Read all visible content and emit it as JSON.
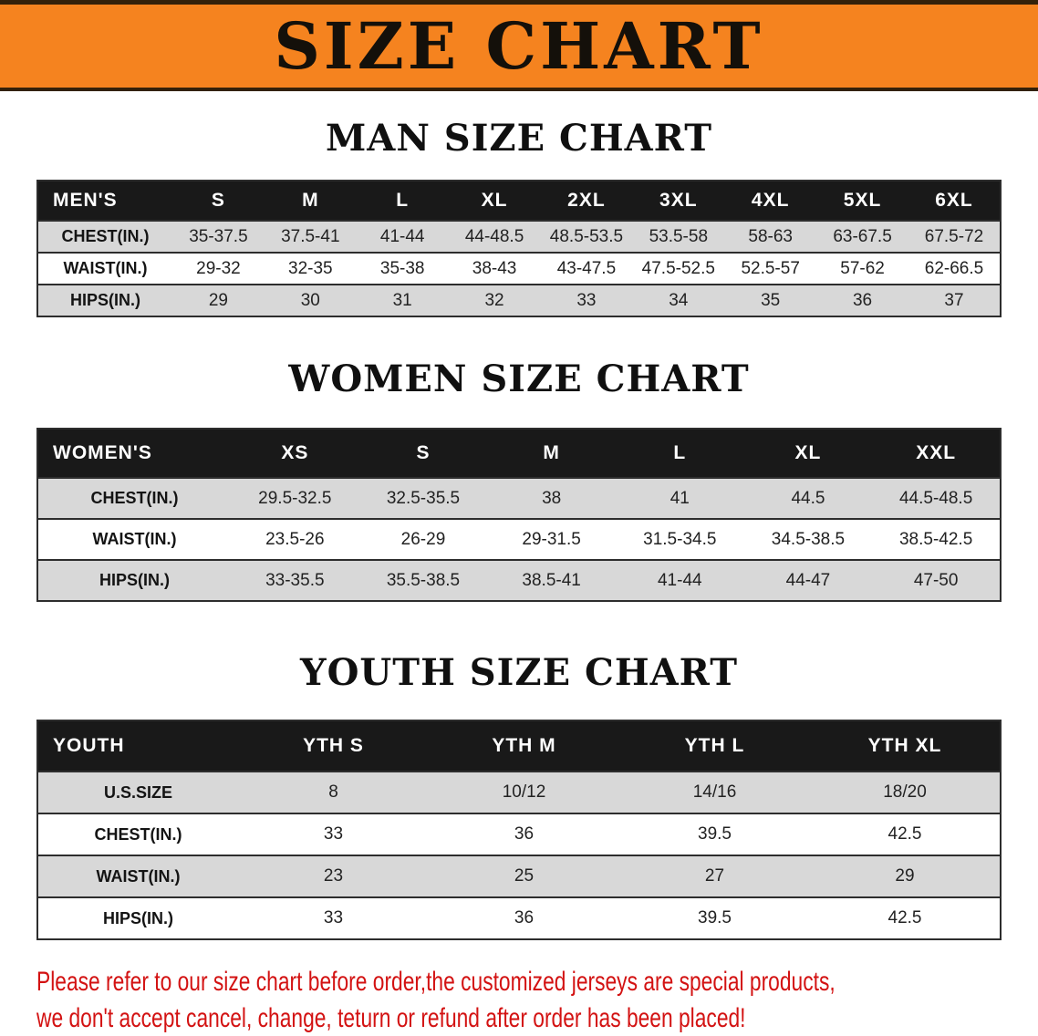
{
  "banner": {
    "title": "SIZE CHART",
    "background_color": "#f5831f"
  },
  "sections": [
    {
      "heading": "MAN SIZE CHART",
      "table": {
        "header": [
          "MEN'S",
          "S",
          "M",
          "L",
          "XL",
          "2XL",
          "3XL",
          "4XL",
          "5XL",
          "6XL"
        ],
        "rows": [
          [
            "CHEST(IN.)",
            "35-37.5",
            "37.5-41",
            "41-44",
            "44-48.5",
            "48.5-53.5",
            "53.5-58",
            "58-63",
            "63-67.5",
            "67.5-72"
          ],
          [
            "WAIST(IN.)",
            "29-32",
            "32-35",
            "35-38",
            "38-43",
            "43-47.5",
            "47.5-52.5",
            "52.5-57",
            "57-62",
            "62-66.5"
          ],
          [
            "HIPS(IN.)",
            "29",
            "30",
            "31",
            "32",
            "33",
            "34",
            "35",
            "36",
            "37"
          ]
        ]
      }
    },
    {
      "heading": "WOMEN SIZE CHART",
      "table": {
        "header": [
          "WOMEN'S",
          "XS",
          "S",
          "M",
          "L",
          "XL",
          "XXL"
        ],
        "rows": [
          [
            "CHEST(IN.)",
            "29.5-32.5",
            "32.5-35.5",
            "38",
            "41",
            "44.5",
            "44.5-48.5"
          ],
          [
            "WAIST(IN.)",
            "23.5-26",
            "26-29",
            "29-31.5",
            "31.5-34.5",
            "34.5-38.5",
            "38.5-42.5"
          ],
          [
            "HIPS(IN.)",
            "33-35.5",
            "35.5-38.5",
            "38.5-41",
            "41-44",
            "44-47",
            "47-50"
          ]
        ]
      }
    },
    {
      "heading": "YOUTH SIZE CHART",
      "table": {
        "header": [
          "YOUTH",
          "YTH S",
          "YTH M",
          "YTH L",
          "YTH XL"
        ],
        "rows": [
          [
            "U.S.SIZE",
            "8",
            "10/12",
            "14/16",
            "18/20"
          ],
          [
            "CHEST(IN.)",
            "33",
            "36",
            "39.5",
            "42.5"
          ],
          [
            "WAIST(IN.)",
            "23",
            "25",
            "27",
            "29"
          ],
          [
            "HIPS(IN.)",
            "33",
            "36",
            "39.5",
            "42.5"
          ]
        ]
      }
    }
  ],
  "footer": {
    "line1": "Please refer to our size chart before order,the customized jerseys are special products,",
    "line2": "we don't accept cancel, change, teturn or refund after order has been placed!",
    "text_color": "#d31212"
  }
}
